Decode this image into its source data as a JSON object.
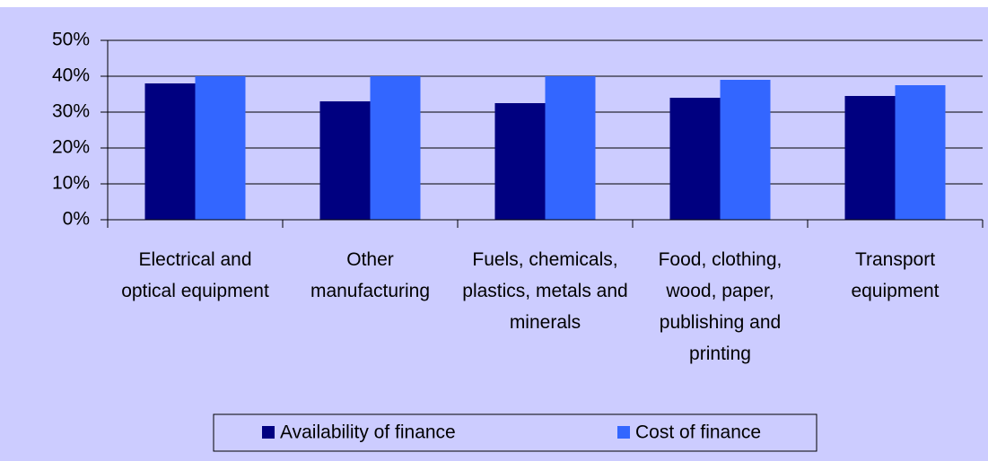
{
  "chart_data": {
    "type": "bar",
    "categories": [
      "Electrical and optical equipment",
      "Other manufacturing",
      "Fuels, chemicals, plastics, metals and minerals",
      "Food, clothing, wood, paper, publishing and printing",
      "Transport equipment"
    ],
    "series": [
      {
        "name": "Availability of finance",
        "color": "#000080",
        "values": [
          38,
          33,
          32.5,
          34,
          34.5
        ]
      },
      {
        "name": "Cost of finance",
        "color": "#3366ff",
        "values": [
          40,
          40,
          40,
          39,
          37.5
        ]
      }
    ],
    "ylim": [
      0,
      50
    ],
    "yticks": [
      {
        "value": 0,
        "label": "0%"
      },
      {
        "value": 10,
        "label": "10%"
      },
      {
        "value": 20,
        "label": "20%"
      },
      {
        "value": 30,
        "label": "30%"
      },
      {
        "value": 40,
        "label": "40%"
      },
      {
        "value": 50,
        "label": "50%"
      }
    ],
    "grid": true,
    "legend": "bottom"
  }
}
